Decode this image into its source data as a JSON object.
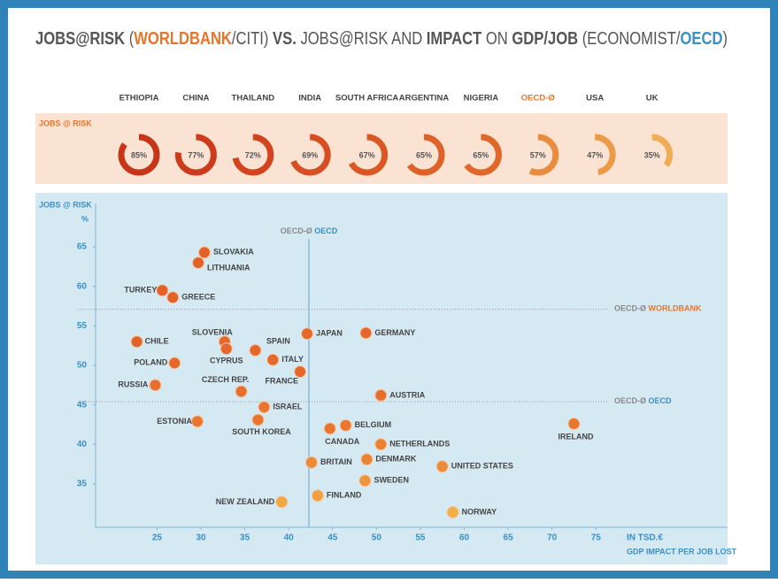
{
  "title": [
    {
      "text": "JOBS@RISK",
      "bold": true,
      "color": "#555555"
    },
    {
      "text": " (",
      "bold": false,
      "color": "#555555"
    },
    {
      "text": "WORLDBANK",
      "bold": true,
      "color": "#e8752a"
    },
    {
      "text": "/CITI) ",
      "bold": false,
      "color": "#555555"
    },
    {
      "text": "VS.",
      "bold": true,
      "color": "#555555"
    },
    {
      "text": " JOBS@RISK AND ",
      "bold": false,
      "color": "#555555"
    },
    {
      "text": "IMPACT",
      "bold": true,
      "color": "#555555"
    },
    {
      "text": " ON ",
      "bold": false,
      "color": "#555555"
    },
    {
      "text": "GDP/JOB",
      "bold": true,
      "color": "#555555"
    },
    {
      "text": " (ECONOMIST/",
      "bold": false,
      "color": "#555555"
    },
    {
      "text": "OECD",
      "bold": true,
      "color": "#3a8fc4"
    },
    {
      "text": ")",
      "bold": false,
      "color": "#555555"
    }
  ],
  "chart_data": [
    {
      "type": "donut",
      "label": "JOBS @ RISK",
      "categories": [
        "ETHIOPIA",
        "CHINA",
        "THAILAND",
        "INDIA",
        "SOUTH AFRICA",
        "ARGENTINA",
        "NIGERIA",
        "OECD-Ø",
        "USA",
        "UK"
      ],
      "category_colors": [
        "#444444",
        "#444444",
        "#444444",
        "#444444",
        "#444444",
        "#444444",
        "#444444",
        "#e8752a",
        "#444444",
        "#444444"
      ],
      "values": [
        85,
        77,
        72,
        69,
        67,
        65,
        65,
        57,
        47,
        35
      ],
      "value_labels": [
        "85%",
        "77%",
        "72%",
        "69%",
        "67%",
        "65%",
        "65%",
        "57%",
        "47%",
        "35%"
      ],
      "colors": [
        "#c8361a",
        "#cc3c1c",
        "#d2441e",
        "#d64e22",
        "#da5724",
        "#de6228",
        "#e0672a",
        "#e98c40",
        "#ec9a48",
        "#f0ad55"
      ]
    },
    {
      "type": "scatter",
      "y_label": "JOBS @ RISK",
      "y_unit": "%",
      "x_unit": "IN TSD.€",
      "x_label": "GDP IMPACT PER JOB LOST",
      "xlim": [
        18,
        90
      ],
      "ylim": [
        29.5,
        70.5
      ],
      "xticks": [
        25,
        30,
        35,
        40,
        45,
        50,
        55,
        60,
        65,
        70,
        75
      ],
      "yticks": [
        35,
        40,
        45,
        50,
        55,
        60,
        65
      ],
      "reference_lines": [
        {
          "axis": "x",
          "value": 42.3,
          "label": "OECD-Ø",
          "source": "OECD",
          "source_color": "#3a8fc4"
        },
        {
          "axis": "y",
          "value": 57.1,
          "label": "OECD-Ø",
          "source": "WORLDBANK",
          "source_color": "#e8752a"
        },
        {
          "axis": "y",
          "value": 45.4,
          "label": "OECD-Ø",
          "source": "OECD",
          "source_color": "#3a8fc4"
        }
      ],
      "series": [
        {
          "labels": [
            "SLOVAKIA",
            "LITHUANIA",
            "TURKEY",
            "GREECE",
            "CHILE",
            "SLOVENIA",
            "CYPRUS",
            "SPAIN",
            "POLAND",
            "ITALY",
            "JAPAN",
            "GERMANY",
            "FRANCE",
            "RUSSIA",
            "CZECH REP.",
            "AUSTRIA",
            "ISRAEL",
            "ESTONIA",
            "SOUTH KOREA",
            "BELGIUM",
            "CANADA",
            "IRELAND",
            "NETHERLANDS",
            "DENMARK",
            "BRITAIN",
            "UNITED STATES",
            "SWEDEN",
            "FINLAND",
            "NEW ZEALAND",
            "NORWAY"
          ],
          "x": [
            30.4,
            29.7,
            25.6,
            26.8,
            22.7,
            32.7,
            32.9,
            36.2,
            27.0,
            38.2,
            42.1,
            48.8,
            41.3,
            24.8,
            34.6,
            50.5,
            37.2,
            29.6,
            36.5,
            46.5,
            44.7,
            72.5,
            50.5,
            48.9,
            42.6,
            57.5,
            48.7,
            43.3,
            39.2,
            58.7
          ],
          "values": [
            64.3,
            63.0,
            59.5,
            58.6,
            53.0,
            53.0,
            52.1,
            51.9,
            50.3,
            50.7,
            54.0,
            54.1,
            49.2,
            47.5,
            46.7,
            46.2,
            44.7,
            42.9,
            43.1,
            42.4,
            42.0,
            42.6,
            40.0,
            38.1,
            37.7,
            37.2,
            35.4,
            33.5,
            32.7,
            31.4
          ],
          "colors": [
            "#e2622a",
            "#e2622a",
            "#e2622a",
            "#e2622a",
            "#e2622a",
            "#e4682c",
            "#e4682c",
            "#e4682c",
            "#e4682c",
            "#e4682c",
            "#e4682c",
            "#e4682c",
            "#e4682c",
            "#e66e2e",
            "#e66e2e",
            "#e66e2e",
            "#e87630",
            "#e87630",
            "#e87630",
            "#e87630",
            "#e87630",
            "#e87630",
            "#ea8234",
            "#ea8234",
            "#ec8a38",
            "#ec8a38",
            "#ee943c",
            "#f0a040",
            "#f0a842",
            "#f2b044"
          ]
        }
      ]
    }
  ]
}
